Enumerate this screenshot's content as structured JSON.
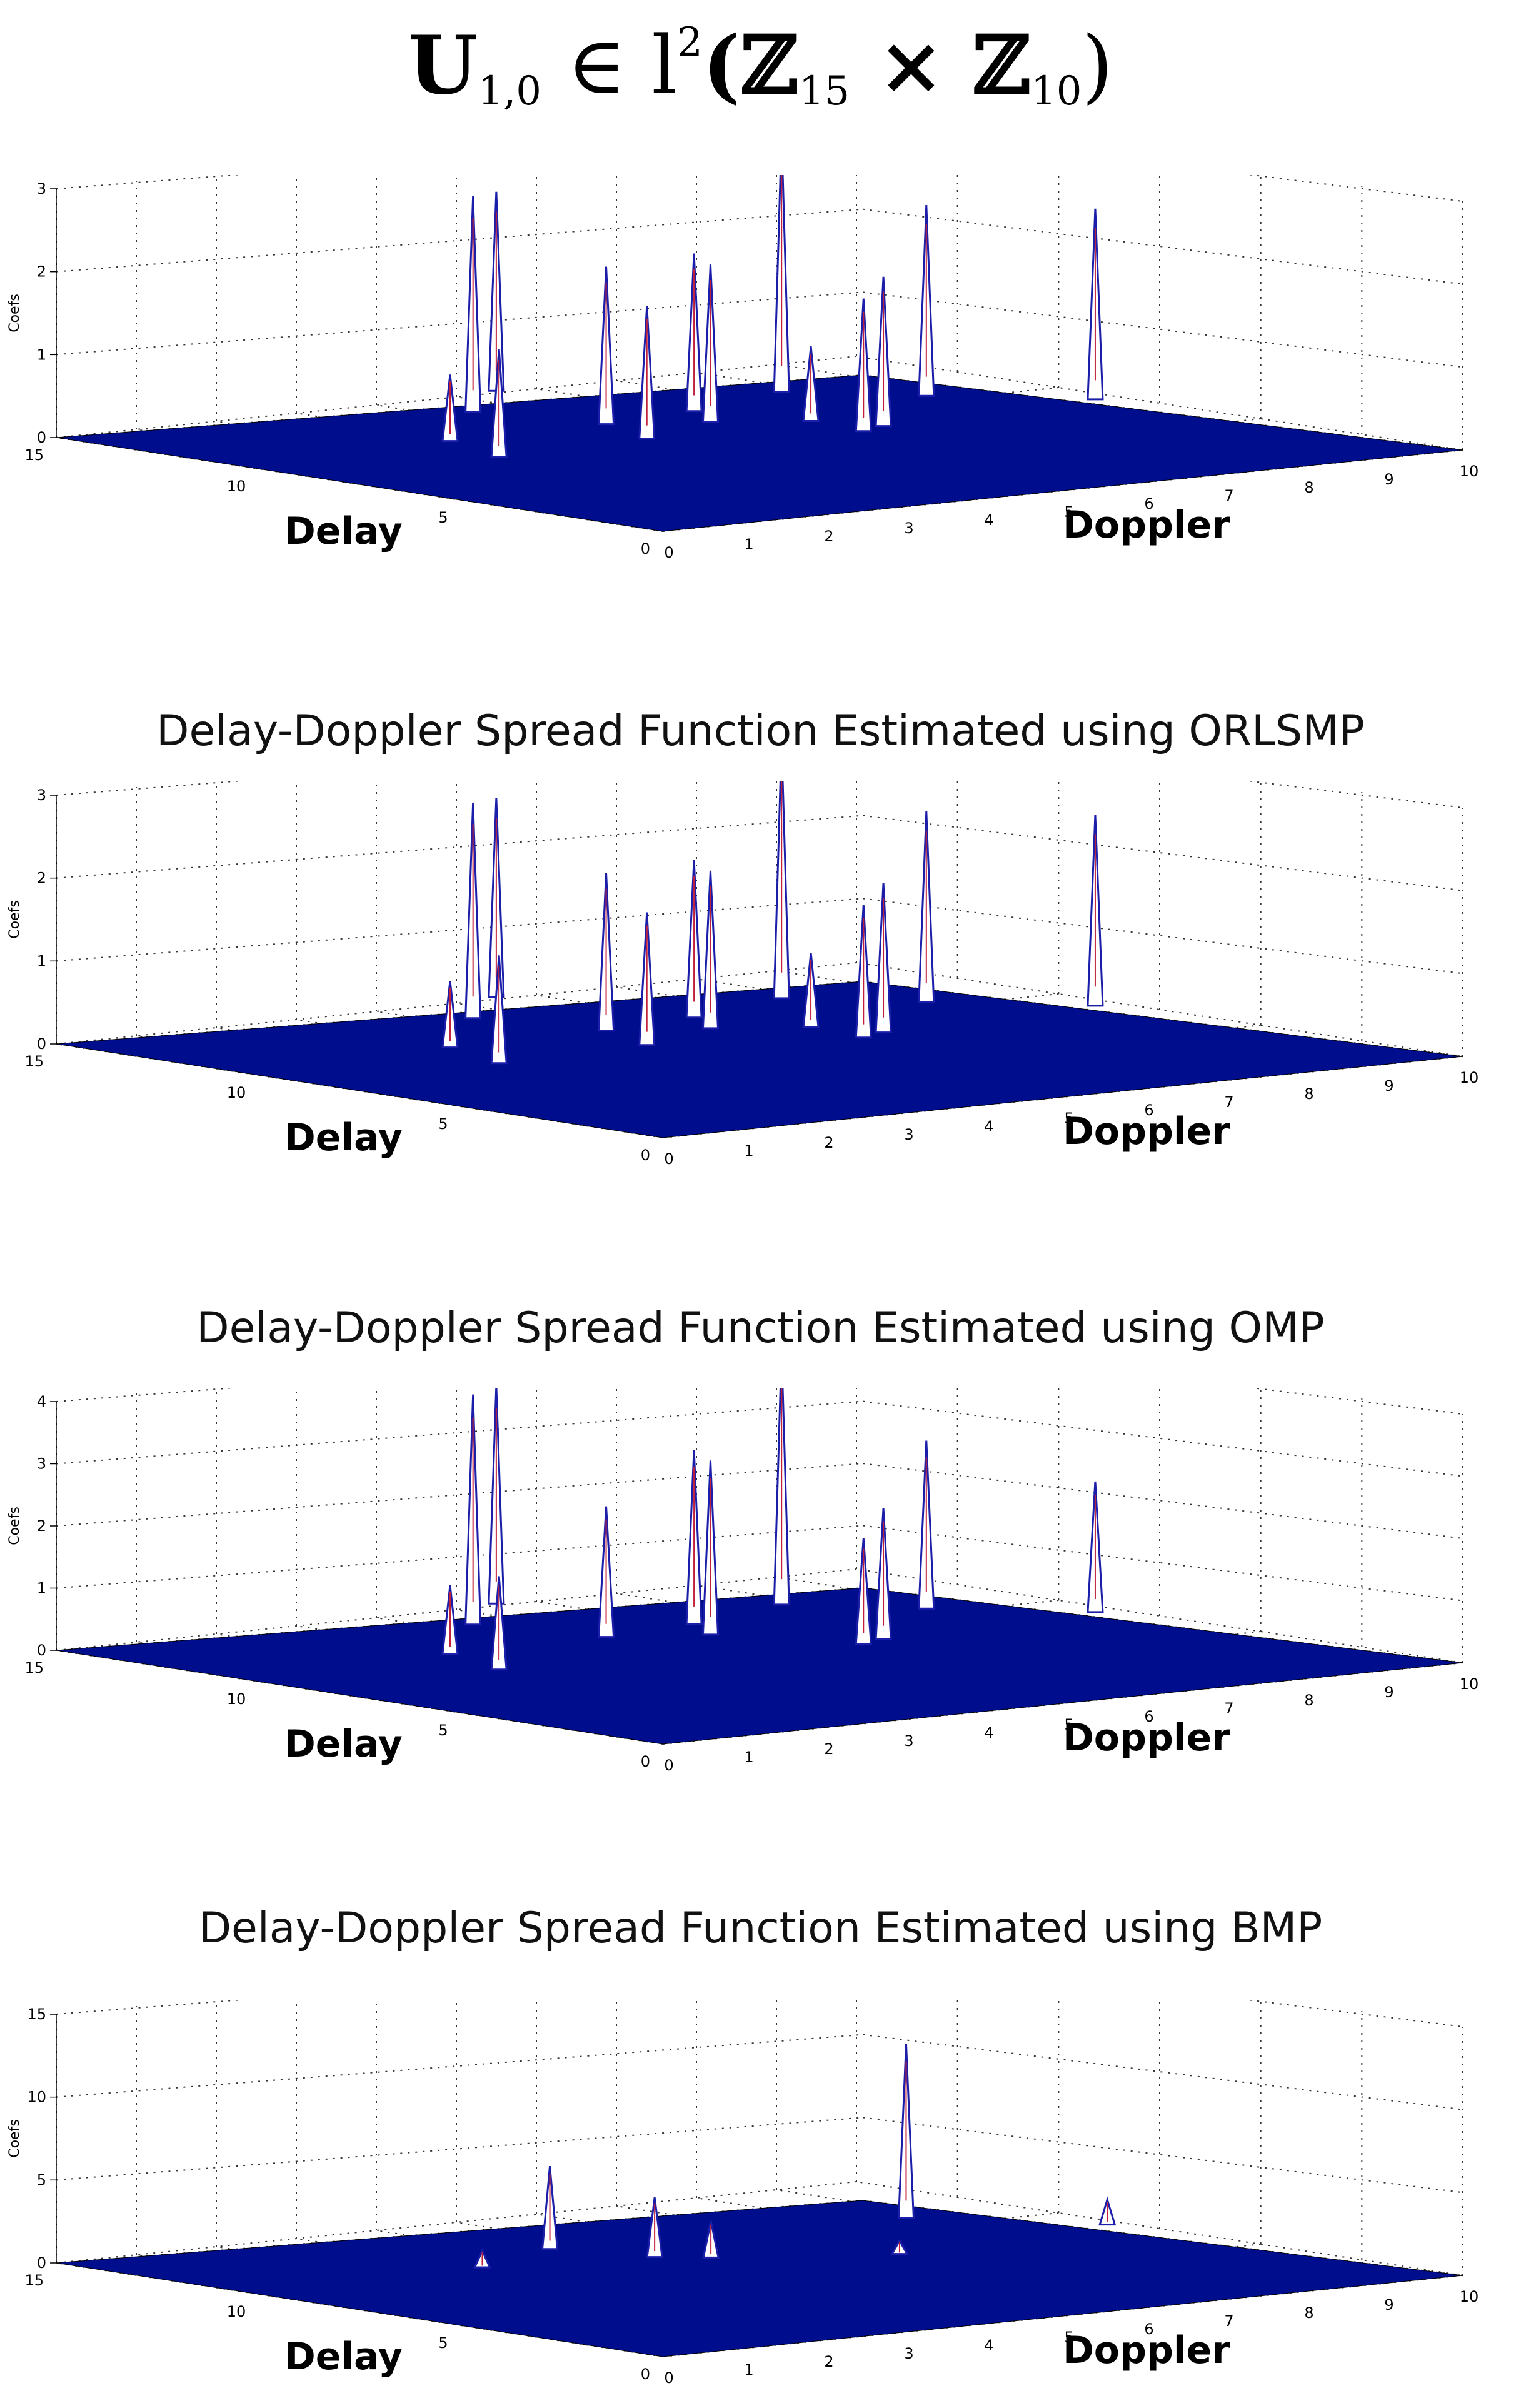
{
  "header": {
    "formula_U": "U",
    "formula_sub": "1,0",
    "formula_in": " ∈ l",
    "formula_sup": "2",
    "formula_Z1": "(ℤ",
    "formula_sub1": "15",
    "formula_times": " × ℤ",
    "formula_sub2": "10",
    "formula_close": ")"
  },
  "chart_data": [
    {
      "type": "bar3d",
      "title": "",
      "xlabel": "Delay",
      "ylabel": "Doppler",
      "zlabel": "Coefs",
      "delay_ticks": [
        "0",
        "5",
        "10",
        "15"
      ],
      "doppler_ticks": [
        "0",
        "1",
        "2",
        "3",
        "4",
        "5",
        "6",
        "7",
        "8",
        "9",
        "10"
      ],
      "z_ticks": [
        "0",
        "1",
        "2",
        "3"
      ],
      "zlim": [
        0,
        3
      ],
      "delay_range": [
        0,
        15
      ],
      "doppler_range": [
        0,
        10
      ],
      "colors": {
        "surface": "#000d8c",
        "spike": "#1b1ea8",
        "spike_core": "#ffffff"
      },
      "points": [
        {
          "delay": 15.2,
          "doppler": 5.6,
          "value": 2.4
        },
        {
          "delay": 13.4,
          "doppler": 4.4,
          "value": 2.6
        },
        {
          "delay": 10.8,
          "doppler": 2.8,
          "value": 0.8
        },
        {
          "delay": 8.8,
          "doppler": 2.4,
          "value": 1.3
        },
        {
          "delay": 10.9,
          "doppler": 4.8,
          "value": 1.9
        },
        {
          "delay": 9.1,
          "doppler": 4.4,
          "value": 1.6
        },
        {
          "delay": 11.3,
          "doppler": 6.1,
          "value": 1.9
        },
        {
          "delay": 10.1,
          "doppler": 5.7,
          "value": 1.9
        },
        {
          "delay": 12.3,
          "doppler": 7.7,
          "value": 3.1
        },
        {
          "delay": 9.2,
          "doppler": 6.5,
          "value": 0.9
        },
        {
          "delay": 7.7,
          "doppler": 6.4,
          "value": 1.6
        },
        {
          "delay": 8.0,
          "doppler": 6.8,
          "value": 1.8
        },
        {
          "delay": 10.5,
          "doppler": 8.6,
          "value": 2.3
        },
        {
          "delay": 8.5,
          "doppler": 9.7,
          "value": 2.3
        }
      ]
    },
    {
      "type": "bar3d",
      "title": "Delay-Doppler Spread Function Estimated using ORLSMP",
      "xlabel": "Delay",
      "ylabel": "Doppler",
      "zlabel": "Coefs",
      "delay_ticks": [
        "0",
        "5",
        "10",
        "15"
      ],
      "doppler_ticks": [
        "0",
        "1",
        "2",
        "3",
        "4",
        "5",
        "6",
        "7",
        "8",
        "9",
        "10"
      ],
      "z_ticks": [
        "0",
        "1",
        "2",
        "3"
      ],
      "zlim": [
        0,
        3
      ],
      "delay_range": [
        0,
        15
      ],
      "doppler_range": [
        0,
        10
      ],
      "colors": {
        "surface": "#000d8c",
        "spike": "#1b1ea8",
        "spike_core": "#ffffff"
      },
      "points": [
        {
          "delay": 15.2,
          "doppler": 5.6,
          "value": 2.4
        },
        {
          "delay": 13.4,
          "doppler": 4.4,
          "value": 2.6
        },
        {
          "delay": 10.8,
          "doppler": 2.8,
          "value": 0.8
        },
        {
          "delay": 8.8,
          "doppler": 2.4,
          "value": 1.3
        },
        {
          "delay": 10.9,
          "doppler": 4.8,
          "value": 1.9
        },
        {
          "delay": 9.1,
          "doppler": 4.4,
          "value": 1.6
        },
        {
          "delay": 11.3,
          "doppler": 6.1,
          "value": 1.9
        },
        {
          "delay": 10.1,
          "doppler": 5.7,
          "value": 1.9
        },
        {
          "delay": 12.3,
          "doppler": 7.7,
          "value": 3.1
        },
        {
          "delay": 9.2,
          "doppler": 6.5,
          "value": 0.9
        },
        {
          "delay": 7.7,
          "doppler": 6.4,
          "value": 1.6
        },
        {
          "delay": 8.0,
          "doppler": 6.8,
          "value": 1.8
        },
        {
          "delay": 10.5,
          "doppler": 8.6,
          "value": 2.3
        },
        {
          "delay": 8.5,
          "doppler": 9.7,
          "value": 2.3
        }
      ]
    },
    {
      "type": "bar3d",
      "title": "Delay-Doppler Spread Function Estimated using OMP",
      "xlabel": "Delay",
      "ylabel": "Doppler",
      "zlabel": "Coefs",
      "delay_ticks": [
        "0",
        "5",
        "10",
        "15"
      ],
      "doppler_ticks": [
        "0",
        "1",
        "2",
        "3",
        "4",
        "5",
        "6",
        "7",
        "8",
        "9",
        "10"
      ],
      "z_ticks": [
        "0",
        "1",
        "2",
        "3",
        "4"
      ],
      "zlim": [
        0,
        4
      ],
      "delay_range": [
        0,
        15
      ],
      "doppler_range": [
        0,
        10
      ],
      "colors": {
        "surface": "#000d8c",
        "spike": "#1b1ea8",
        "spike_core": "#ffffff"
      },
      "points": [
        {
          "delay": 15.2,
          "doppler": 5.6,
          "value": 3.5
        },
        {
          "delay": 13.4,
          "doppler": 4.4,
          "value": 3.7
        },
        {
          "delay": 10.8,
          "doppler": 2.8,
          "value": 1.1
        },
        {
          "delay": 8.8,
          "doppler": 2.4,
          "value": 1.5
        },
        {
          "delay": 10.9,
          "doppler": 4.8,
          "value": 2.1
        },
        {
          "delay": 11.3,
          "doppler": 6.1,
          "value": 2.8
        },
        {
          "delay": 10.1,
          "doppler": 5.7,
          "value": 2.8
        },
        {
          "delay": 12.3,
          "doppler": 7.7,
          "value": 4.1
        },
        {
          "delay": 7.7,
          "doppler": 6.4,
          "value": 1.7
        },
        {
          "delay": 8.0,
          "doppler": 6.8,
          "value": 2.1
        },
        {
          "delay": 10.5,
          "doppler": 8.6,
          "value": 2.7
        },
        {
          "delay": 8.5,
          "doppler": 9.7,
          "value": 2.1
        }
      ]
    },
    {
      "type": "bar3d",
      "title": "Delay-Doppler Spread Function Estimated using BMP",
      "xlabel": "Delay",
      "ylabel": "Doppler",
      "zlabel": "Coefs",
      "delay_ticks": [
        "0",
        "5",
        "10",
        "15"
      ],
      "doppler_ticks": [
        "0",
        "1",
        "2",
        "3",
        "4",
        "5",
        "6",
        "7",
        "8",
        "9",
        "10"
      ],
      "z_ticks": [
        "0",
        "5",
        "10",
        "15"
      ],
      "zlim": [
        0,
        15
      ],
      "delay_range": [
        0,
        15
      ],
      "doppler_range": [
        0,
        10
      ],
      "colors": {
        "surface": "#000d8c",
        "spike": "#1b1ea8",
        "spike_core": "#ffffff"
      },
      "points": [
        {
          "delay": 11.5,
          "doppler": 4.4,
          "value": 5.0
        },
        {
          "delay": 10.4,
          "doppler": 3.0,
          "value": 1.0
        },
        {
          "delay": 9.1,
          "doppler": 5.2,
          "value": 2.2
        },
        {
          "delay": 9.7,
          "doppler": 4.8,
          "value": 3.6
        },
        {
          "delay": 7.6,
          "doppler": 6.8,
          "value": 0.8
        },
        {
          "delay": 11.0,
          "doppler": 8.6,
          "value": 10.5
        },
        {
          "delay": 8.4,
          "doppler": 9.8,
          "value": 1.5
        }
      ]
    }
  ]
}
